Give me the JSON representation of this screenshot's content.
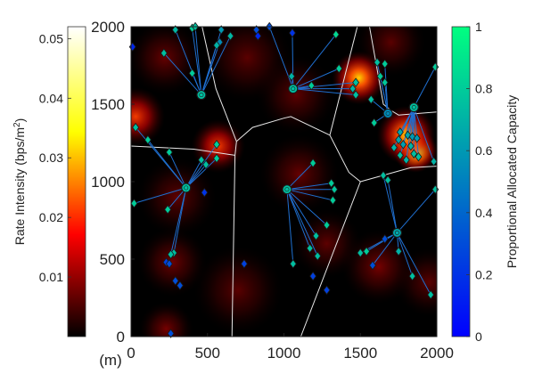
{
  "chart_data": {
    "type": "heatmap",
    "title": "",
    "xlabel": "(m)",
    "ylabel_left": "Rate Intensity (bps/m²)",
    "ylabel_right": "Proportional Allocated Capacity",
    "xlim": [
      0,
      2000
    ],
    "ylim": [
      0,
      2000
    ],
    "x_ticks": [
      0,
      500,
      1000,
      1500,
      2000
    ],
    "y_ticks": [
      0,
      500,
      1000,
      1500,
      2000
    ],
    "intensity_colorbar": {
      "range": [
        0,
        0.052
      ],
      "ticks": [
        "0.01",
        "0.02",
        "0.03",
        "0.04",
        "0.05"
      ],
      "tick_values": [
        0.01,
        0.02,
        0.03,
        0.04,
        0.05
      ],
      "colormap": "hot"
    },
    "capacity_colorbar": {
      "range": [
        0,
        1
      ],
      "ticks": [
        "0",
        "0.2",
        "0.4",
        "0.6",
        "0.8",
        "1"
      ],
      "tick_values": [
        0,
        0.2,
        0.4,
        0.6,
        0.8,
        1
      ],
      "colormap": "winter"
    },
    "hotspots": [
      {
        "x": 1860,
        "y": 1200,
        "intensity": 0.052,
        "spread": 90
      },
      {
        "x": 1800,
        "y": 1300,
        "intensity": 0.035,
        "spread": 120
      },
      {
        "x": 1490,
        "y": 1670,
        "intensity": 0.032,
        "spread": 110
      },
      {
        "x": 570,
        "y": 1230,
        "intensity": 0.026,
        "spread": 110
      },
      {
        "x": 30,
        "y": 1420,
        "intensity": 0.024,
        "spread": 120
      },
      {
        "x": 220,
        "y": 1800,
        "intensity": 0.012,
        "spread": 150
      },
      {
        "x": 1080,
        "y": 1560,
        "intensity": 0.011,
        "spread": 160
      },
      {
        "x": 1100,
        "y": 1050,
        "intensity": 0.012,
        "spread": 160
      },
      {
        "x": 300,
        "y": 900,
        "intensity": 0.011,
        "spread": 160
      },
      {
        "x": 270,
        "y": 480,
        "intensity": 0.013,
        "spread": 140
      },
      {
        "x": 1620,
        "y": 450,
        "intensity": 0.014,
        "spread": 150
      },
      {
        "x": 1280,
        "y": 600,
        "intensity": 0.011,
        "spread": 140
      },
      {
        "x": 230,
        "y": 50,
        "intensity": 0.014,
        "spread": 110
      },
      {
        "x": 1950,
        "y": 350,
        "intensity": 0.009,
        "spread": 140
      },
      {
        "x": 1700,
        "y": 1900,
        "intensity": 0.009,
        "spread": 140
      },
      {
        "x": 760,
        "y": 1800,
        "intensity": 0.006,
        "spread": 180
      },
      {
        "x": 700,
        "y": 300,
        "intensity": 0.006,
        "spread": 180
      }
    ],
    "voronoi_edges": [
      [
        [
          465,
          2000
        ],
        [
          555,
          1600
        ],
        [
          690,
          1260
        ]
      ],
      [
        [
          690,
          1260
        ],
        [
          680,
          1170
        ]
      ],
      [
        [
          680,
          1170
        ],
        [
          410,
          1210
        ],
        [
          0,
          1230
        ]
      ],
      [
        [
          690,
          1260
        ],
        [
          795,
          1350
        ],
        [
          1000,
          1410
        ],
        [
          1045,
          1420
        ],
        [
          1300,
          1300
        ]
      ],
      [
        [
          1300,
          1300
        ],
        [
          1480,
          2000
        ]
      ],
      [
        [
          1300,
          1300
        ],
        [
          1425,
          1060
        ],
        [
          1500,
          1000
        ]
      ],
      [
        [
          1500,
          1000
        ],
        [
          1830,
          1090
        ],
        [
          2000,
          1100
        ]
      ],
      [
        [
          1500,
          1000
        ],
        [
          1110,
          0
        ]
      ],
      [
        [
          680,
          1170
        ],
        [
          660,
          0
        ]
      ],
      [
        [
          1560,
          2000
        ],
        [
          1650,
          1500
        ],
        [
          1700,
          1460
        ],
        [
          1750,
          1430
        ],
        [
          2000,
          1450
        ]
      ]
    ],
    "base_stations": [
      {
        "x": 460,
        "y": 1560,
        "capacity": 0.75
      },
      {
        "x": 1060,
        "y": 1600,
        "capacity": 0.75
      },
      {
        "x": 1680,
        "y": 1440,
        "capacity": 0.55
      },
      {
        "x": 1850,
        "y": 1480,
        "capacity": 0.75
      },
      {
        "x": 360,
        "y": 960,
        "capacity": 0.75
      },
      {
        "x": 1020,
        "y": 950,
        "capacity": 0.75
      },
      {
        "x": 1740,
        "y": 670,
        "capacity": 0.65
      }
    ],
    "users": [
      {
        "x": 10,
        "y": 1870,
        "capacity": 0.15,
        "bs": null
      },
      {
        "x": 215,
        "y": 1830,
        "capacity": 0.75,
        "bs": 0
      },
      {
        "x": 290,
        "y": 1980,
        "capacity": 0.72,
        "bs": 0
      },
      {
        "x": 400,
        "y": 1990,
        "capacity": 0.8,
        "bs": 0
      },
      {
        "x": 400,
        "y": 1700,
        "capacity": 0.8,
        "bs": 0
      },
      {
        "x": 580,
        "y": 1900,
        "capacity": 0.55,
        "bs": 0
      },
      {
        "x": 590,
        "y": 1980,
        "capacity": 0.6,
        "bs": 0
      },
      {
        "x": 560,
        "y": 1880,
        "capacity": 0.7,
        "bs": 0
      },
      {
        "x": 650,
        "y": 1940,
        "capacity": 0.72,
        "bs": 0
      },
      {
        "x": 420,
        "y": 2000,
        "capacity": 0.75,
        "bs": 0
      },
      {
        "x": 820,
        "y": 1980,
        "capacity": 0.3,
        "bs": null
      },
      {
        "x": 830,
        "y": 1940,
        "capacity": 0.15,
        "bs": null
      },
      {
        "x": 905,
        "y": 2000,
        "capacity": 0.3,
        "bs": 1
      },
      {
        "x": 1055,
        "y": 1960,
        "capacity": 0.2,
        "bs": 1
      },
      {
        "x": 1050,
        "y": 1680,
        "capacity": 0.7,
        "bs": 1
      },
      {
        "x": 1180,
        "y": 1620,
        "capacity": 0.8,
        "bs": 1
      },
      {
        "x": 1340,
        "y": 1950,
        "capacity": 0.85,
        "bs": 1
      },
      {
        "x": 1360,
        "y": 1730,
        "capacity": 0.8,
        "bs": 1
      },
      {
        "x": 1470,
        "y": 1640,
        "capacity": 0.75,
        "bs": 1
      },
      {
        "x": 1450,
        "y": 1600,
        "capacity": 0.7,
        "bs": 1
      },
      {
        "x": 1470,
        "y": 1560,
        "capacity": 0.75,
        "bs": 1
      },
      {
        "x": 1610,
        "y": 1770,
        "capacity": 0.75,
        "bs": 2
      },
      {
        "x": 1660,
        "y": 1760,
        "capacity": 0.8,
        "bs": 2
      },
      {
        "x": 1630,
        "y": 1680,
        "capacity": 0.8,
        "bs": 2
      },
      {
        "x": 1660,
        "y": 1640,
        "capacity": 0.78,
        "bs": 2
      },
      {
        "x": 1570,
        "y": 1530,
        "capacity": 0.75,
        "bs": 2
      },
      {
        "x": 1590,
        "y": 1380,
        "capacity": 0.8,
        "bs": 2
      },
      {
        "x": 1990,
        "y": 1740,
        "capacity": 0.8,
        "bs": 3
      },
      {
        "x": 1760,
        "y": 1320,
        "capacity": 0.65,
        "bs": 3
      },
      {
        "x": 1780,
        "y": 1240,
        "capacity": 0.62,
        "bs": 3
      },
      {
        "x": 1810,
        "y": 1300,
        "capacity": 0.65,
        "bs": 3
      },
      {
        "x": 1840,
        "y": 1290,
        "capacity": 0.6,
        "bs": 3
      },
      {
        "x": 1870,
        "y": 1280,
        "capacity": 0.6,
        "bs": 3
      },
      {
        "x": 1750,
        "y": 1270,
        "capacity": 0.65,
        "bs": 3
      },
      {
        "x": 1830,
        "y": 1230,
        "capacity": 0.7,
        "bs": 3
      },
      {
        "x": 1720,
        "y": 1220,
        "capacity": 0.7,
        "bs": 3
      },
      {
        "x": 1850,
        "y": 1180,
        "capacity": 0.75,
        "bs": 3
      },
      {
        "x": 1880,
        "y": 1160,
        "capacity": 0.75,
        "bs": 3
      },
      {
        "x": 1760,
        "y": 1170,
        "capacity": 0.75,
        "bs": 3
      },
      {
        "x": 1800,
        "y": 1140,
        "capacity": 0.7,
        "bs": 3
      },
      {
        "x": 1980,
        "y": 1130,
        "capacity": 0.7,
        "bs": 3
      },
      {
        "x": 30,
        "y": 1350,
        "capacity": 0.75,
        "bs": 4
      },
      {
        "x": 110,
        "y": 1270,
        "capacity": 0.8,
        "bs": 4
      },
      {
        "x": 250,
        "y": 1190,
        "capacity": 0.8,
        "bs": 4
      },
      {
        "x": 460,
        "y": 1140,
        "capacity": 0.75,
        "bs": 4
      },
      {
        "x": 490,
        "y": 1110,
        "capacity": 0.75,
        "bs": 4
      },
      {
        "x": 560,
        "y": 1150,
        "capacity": 0.8,
        "bs": 4
      },
      {
        "x": 560,
        "y": 1240,
        "capacity": 0.8,
        "bs": 4
      },
      {
        "x": 480,
        "y": 930,
        "capacity": 0.2,
        "bs": null
      },
      {
        "x": 20,
        "y": 860,
        "capacity": 0.8,
        "bs": 4
      },
      {
        "x": 240,
        "y": 820,
        "capacity": 0.8,
        "bs": 4
      },
      {
        "x": 280,
        "y": 540,
        "capacity": 0.75,
        "bs": 4
      },
      {
        "x": 260,
        "y": 530,
        "capacity": 0.75,
        "bs": 4
      },
      {
        "x": 230,
        "y": 480,
        "capacity": 0.25,
        "bs": null
      },
      {
        "x": 250,
        "y": 470,
        "capacity": 0.3,
        "bs": null
      },
      {
        "x": 290,
        "y": 360,
        "capacity": 0.3,
        "bs": null
      },
      {
        "x": 320,
        "y": 330,
        "capacity": 0.3,
        "bs": null
      },
      {
        "x": 260,
        "y": 20,
        "capacity": 0.3,
        "bs": null
      },
      {
        "x": 740,
        "y": 470,
        "capacity": 0.25,
        "bs": null
      },
      {
        "x": 1190,
        "y": 390,
        "capacity": 0.25,
        "bs": null
      },
      {
        "x": 1280,
        "y": 300,
        "capacity": 0.25,
        "bs": null
      },
      {
        "x": 1060,
        "y": 470,
        "capacity": 0.75,
        "bs": 5
      },
      {
        "x": 1170,
        "y": 570,
        "capacity": 0.75,
        "bs": 5
      },
      {
        "x": 1210,
        "y": 650,
        "capacity": 0.75,
        "bs": 5
      },
      {
        "x": 1280,
        "y": 720,
        "capacity": 0.8,
        "bs": 5
      },
      {
        "x": 1320,
        "y": 880,
        "capacity": 0.8,
        "bs": 5
      },
      {
        "x": 1330,
        "y": 950,
        "capacity": 0.78,
        "bs": 5
      },
      {
        "x": 1310,
        "y": 990,
        "capacity": 0.8,
        "bs": 5
      },
      {
        "x": 1190,
        "y": 1120,
        "capacity": 0.8,
        "bs": 5
      },
      {
        "x": 1220,
        "y": 520,
        "capacity": 0.75,
        "bs": 5
      },
      {
        "x": 1500,
        "y": 540,
        "capacity": 0.75,
        "bs": 6
      },
      {
        "x": 1540,
        "y": 550,
        "capacity": 0.8,
        "bs": 6
      },
      {
        "x": 1580,
        "y": 460,
        "capacity": 0.3,
        "bs": 6
      },
      {
        "x": 1660,
        "y": 630,
        "capacity": 0.3,
        "bs": 6
      },
      {
        "x": 1650,
        "y": 1040,
        "capacity": 0.75,
        "bs": 6
      },
      {
        "x": 1680,
        "y": 1010,
        "capacity": 0.75,
        "bs": 6
      },
      {
        "x": 1990,
        "y": 950,
        "capacity": 0.75,
        "bs": 6
      },
      {
        "x": 1840,
        "y": 390,
        "capacity": 0.75,
        "bs": 6
      },
      {
        "x": 1960,
        "y": 270,
        "capacity": 0.75,
        "bs": 6
      },
      {
        "x": 1750,
        "y": 550,
        "capacity": 0.7,
        "bs": 6
      }
    ]
  }
}
